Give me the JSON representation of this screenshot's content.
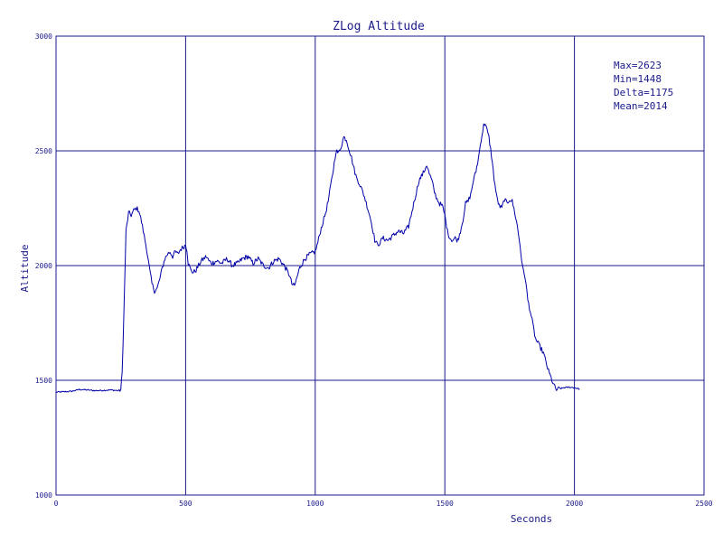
{
  "chart_data": {
    "type": "line",
    "title": "ZLog Altitude",
    "xlabel": "Seconds",
    "ylabel": "Altitude",
    "xlim": [
      0,
      2500
    ],
    "ylim": [
      1000,
      3000
    ],
    "xticks": [
      "0",
      "500",
      "1000",
      "1500",
      "2000",
      "2500"
    ],
    "yticks": [
      "1000",
      "1500",
      "2000",
      "2500",
      "3000"
    ],
    "grid": true,
    "stats": [
      "Max=2623",
      "Min=1448",
      "Delta=1175",
      "Mean=2014"
    ],
    "colors": {
      "line": "#0000a8",
      "grid": "#1a1a8c",
      "text": "#1a1a8c"
    },
    "series": [
      {
        "x": [
          0,
          30,
          60,
          90,
          120,
          150,
          180,
          210,
          240,
          250,
          255,
          262,
          270,
          280,
          290,
          300,
          310,
          320,
          330,
          340,
          350,
          360,
          370,
          380,
          390,
          400,
          410,
          420,
          430,
          440,
          450,
          460,
          470,
          480,
          490,
          500,
          505,
          510,
          520,
          530,
          540,
          550,
          560,
          570,
          580,
          590,
          600,
          620,
          640,
          660,
          680,
          700,
          720,
          740,
          760,
          780,
          800,
          820,
          840,
          860,
          880,
          900,
          910,
          920,
          930,
          940,
          960,
          980,
          1000,
          1010,
          1020,
          1030,
          1040,
          1050,
          1060,
          1070,
          1080,
          1090,
          1100,
          1110,
          1120,
          1130,
          1140,
          1150,
          1160,
          1170,
          1180,
          1190,
          1200,
          1210,
          1220,
          1230,
          1240,
          1250,
          1260,
          1280,
          1300,
          1320,
          1340,
          1360,
          1370,
          1380,
          1390,
          1400,
          1410,
          1420,
          1430,
          1440,
          1450,
          1460,
          1470,
          1480,
          1490,
          1500,
          1510,
          1520,
          1530,
          1540,
          1550,
          1560,
          1570,
          1580,
          1590,
          1600,
          1610,
          1620,
          1630,
          1640,
          1650,
          1655,
          1660,
          1670,
          1680,
          1690,
          1700,
          1710,
          1720,
          1730,
          1740,
          1750,
          1760,
          1770,
          1780,
          1790,
          1800,
          1810,
          1820,
          1830,
          1840,
          1850,
          1860,
          1870,
          1880,
          1890,
          1900,
          1910,
          1920,
          1930,
          1940,
          1960,
          1980,
          2000,
          2020
        ],
        "y": [
          1448,
          1450,
          1452,
          1460,
          1458,
          1455,
          1456,
          1458,
          1455,
          1460,
          1530,
          1800,
          2150,
          2230,
          2220,
          2240,
          2250,
          2240,
          2190,
          2130,
          2070,
          1990,
          1920,
          1890,
          1900,
          1940,
          1990,
          2030,
          2050,
          2060,
          2040,
          2060,
          2050,
          2070,
          2080,
          2090,
          2070,
          2010,
          1980,
          1970,
          1980,
          2000,
          2020,
          2030,
          2040,
          2020,
          2010,
          2020,
          2010,
          2030,
          2000,
          2010,
          2030,
          2040,
          2010,
          2030,
          2000,
          1990,
          2020,
          2030,
          2000,
          1960,
          1920,
          1910,
          1950,
          1990,
          2030,
          2050,
          2060,
          2100,
          2150,
          2190,
          2230,
          2280,
          2350,
          2420,
          2500,
          2490,
          2520,
          2560,
          2550,
          2510,
          2470,
          2420,
          2380,
          2360,
          2330,
          2300,
          2260,
          2220,
          2170,
          2110,
          2090,
          2100,
          2120,
          2110,
          2130,
          2150,
          2140,
          2170,
          2220,
          2270,
          2320,
          2370,
          2390,
          2410,
          2440,
          2400,
          2370,
          2320,
          2290,
          2270,
          2260,
          2220,
          2150,
          2120,
          2110,
          2120,
          2110,
          2150,
          2200,
          2270,
          2280,
          2310,
          2370,
          2410,
          2470,
          2550,
          2610,
          2623,
          2600,
          2560,
          2480,
          2380,
          2300,
          2260,
          2250,
          2290,
          2270,
          2290,
          2280,
          2230,
          2170,
          2090,
          1990,
          1950,
          1850,
          1800,
          1740,
          1680,
          1660,
          1640,
          1620,
          1580,
          1540,
          1510,
          1480,
          1458,
          1462,
          1468,
          1470,
          1468,
          1462
        ]
      }
    ]
  }
}
